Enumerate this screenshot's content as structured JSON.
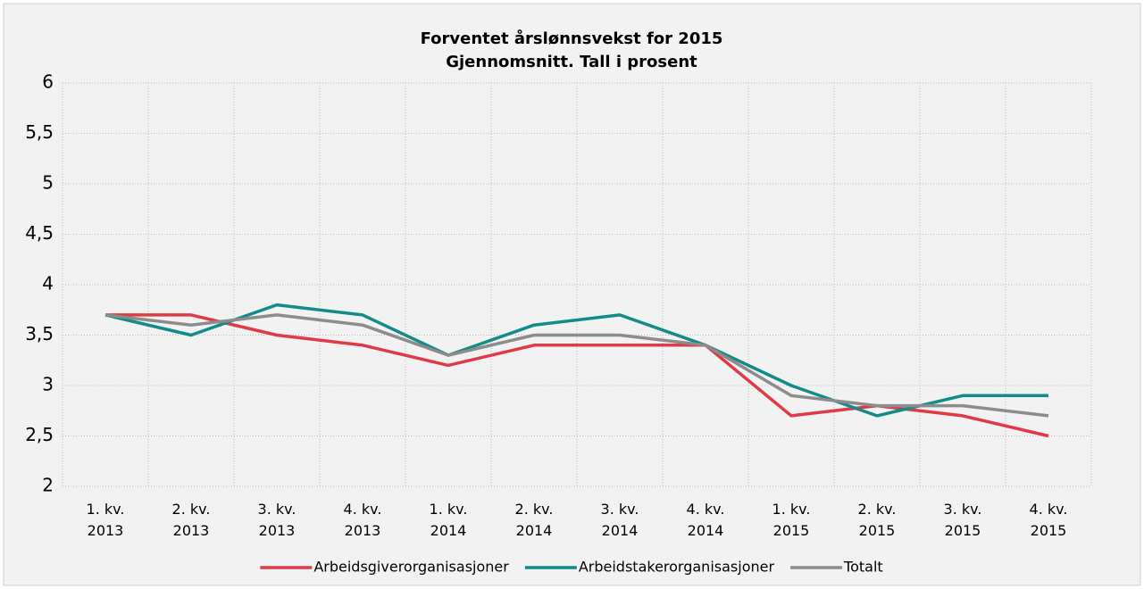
{
  "chart_data": {
    "type": "line",
    "title": "Forventet årslønnsvekst for 2015",
    "subtitle": "Gjennomsnitt. Tall i prosent",
    "categories": [
      "1. kv. 2013",
      "2. kv. 2013",
      "3. kv. 2013",
      "4. kv. 2013",
      "1. kv. 2014",
      "2. kv. 2014",
      "3. kv. 2014",
      "4. kv. 2014",
      "1. kv. 2015",
      "2. kv. 2015",
      "3. kv. 2015",
      "4. kv. 2015"
    ],
    "series": [
      {
        "name": "Arbeidsgiverorganisasjoner",
        "color": "#e03a47",
        "values": [
          3.7,
          3.7,
          3.5,
          3.4,
          3.2,
          3.4,
          3.4,
          3.4,
          2.7,
          2.8,
          2.7,
          2.5
        ]
      },
      {
        "name": "Arbeidstakerorganisasjoner",
        "color": "#138b8b",
        "values": [
          3.7,
          3.5,
          3.8,
          3.7,
          3.3,
          3.6,
          3.7,
          3.4,
          3.0,
          2.7,
          2.9,
          2.9
        ]
      },
      {
        "name": "Totalt",
        "color": "#8c8c8c",
        "values": [
          3.7,
          3.6,
          3.7,
          3.6,
          3.3,
          3.5,
          3.5,
          3.4,
          2.9,
          2.8,
          2.8,
          2.7
        ]
      }
    ],
    "ylim": [
      2,
      6
    ],
    "yticks": [
      2,
      {
        "value": 2.5,
        "label": "2,5"
      },
      3,
      {
        "value": 3.5,
        "label": "3,5"
      },
      4,
      {
        "value": 4.5,
        "label": "4,5"
      },
      5,
      {
        "value": 5.5,
        "label": "5,5"
      },
      6
    ],
    "grid": true,
    "legend": "bottom"
  }
}
